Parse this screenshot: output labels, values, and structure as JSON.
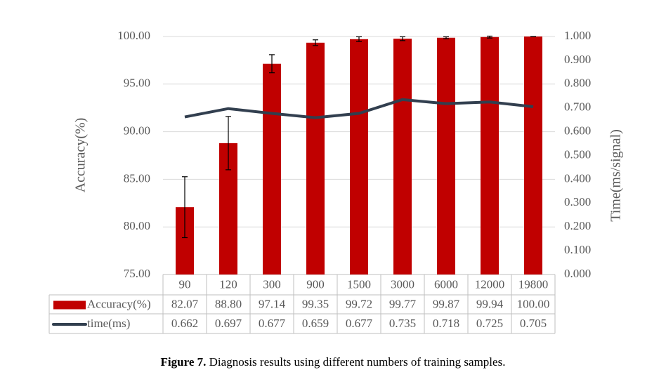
{
  "chart_data": {
    "type": "bar",
    "categories": [
      "90",
      "120",
      "300",
      "900",
      "1500",
      "3000",
      "6000",
      "12000",
      "19800"
    ],
    "series": [
      {
        "name": "Accuracy(%)",
        "type": "bar",
        "color": "#c00000",
        "values": [
          82.07,
          88.8,
          97.14,
          99.35,
          99.72,
          99.77,
          99.87,
          99.94,
          100
        ],
        "value_labels": [
          "82.07",
          "88.80",
          "97.14",
          "99.35",
          "99.72",
          "99.77",
          "99.87",
          "99.94",
          "100.00"
        ],
        "errors": [
          3.2,
          2.8,
          0.95,
          0.3,
          0.25,
          0.2,
          0.1,
          0.1,
          0
        ]
      },
      {
        "name": "time(ms)",
        "type": "line",
        "axis": "y2",
        "color": "#323f4f",
        "values": [
          0.662,
          0.697,
          0.677,
          0.659,
          0.677,
          0.735,
          0.718,
          0.725,
          0.705
        ]
      }
    ],
    "ylabel": "Accuracy(%)",
    "y2label": "Time(ms/signal)",
    "ylim": [
      75,
      100
    ],
    "yticks": [
      {
        "value": 75,
        "label": "75.00"
      },
      {
        "value": 80,
        "label": "80.00"
      },
      {
        "value": 85,
        "label": "85.00"
      },
      {
        "value": 90,
        "label": "90.00"
      },
      {
        "value": 95,
        "label": "95.00"
      },
      {
        "value": 100,
        "label": "100.00"
      }
    ],
    "y2lim": [
      0,
      1
    ],
    "y2ticks": [
      {
        "value": 0,
        "label": "0.000"
      },
      {
        "value": 0.1,
        "label": "0.100"
      },
      {
        "value": 0.2,
        "label": "0.200"
      },
      {
        "value": 0.3,
        "label": "0.300"
      },
      {
        "value": 0.4,
        "label": "0.400"
      },
      {
        "value": 0.5,
        "label": "0.500"
      },
      {
        "value": 0.6,
        "label": "0.600"
      },
      {
        "value": 0.7,
        "label": "0.700"
      },
      {
        "value": 0.8,
        "label": "0.800"
      },
      {
        "value": 0.9,
        "label": "0.900"
      },
      {
        "value": 1,
        "label": "1.000"
      }
    ],
    "grid": true,
    "caption_label": "Figure 7.",
    "caption_text": "Diagnosis results using different numbers of training samples."
  }
}
